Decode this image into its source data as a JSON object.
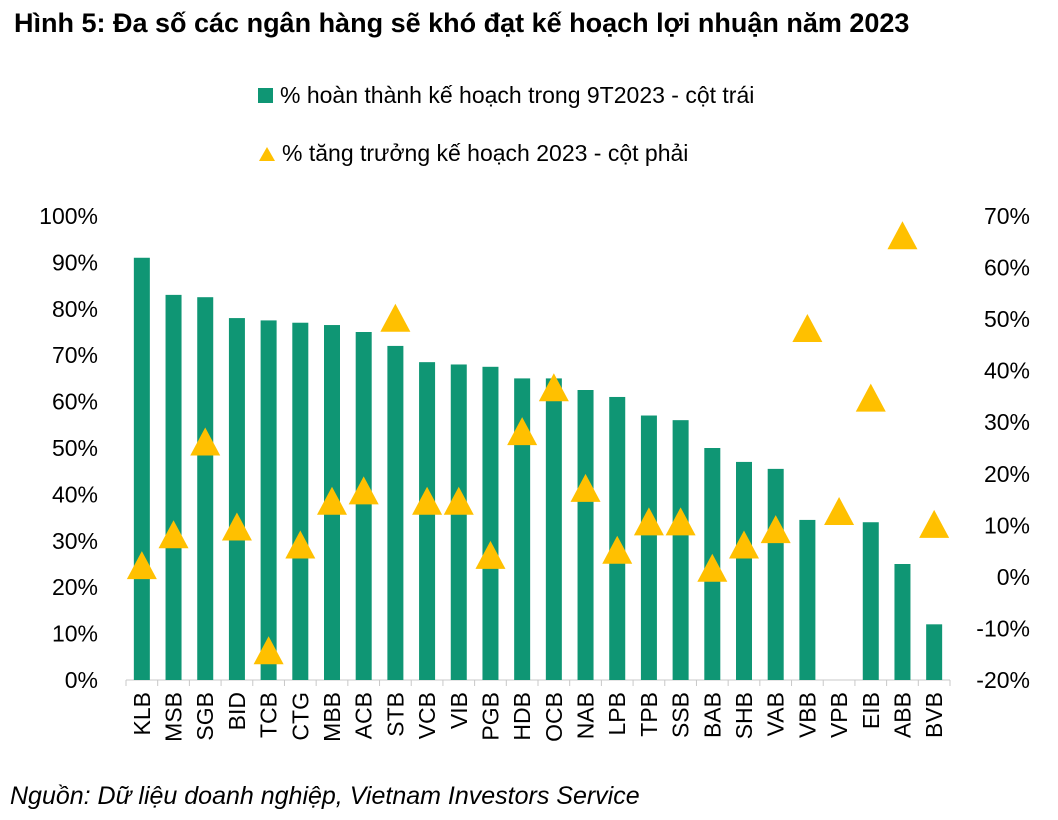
{
  "title": "Hình 5: Đa số các ngân hàng sẽ khó đạt kế hoạch lợi nhuận năm 2023",
  "source": "Nguồn: Dữ liệu doanh nghiệp, Vietnam Investors Service",
  "legend": {
    "series_0": "% hoàn thành kế hoạch trong 9T2023 - cột trái",
    "series_1": "% tăng trưởng kế hoạch 2023 - cột phải"
  },
  "colors": {
    "bar": "#0F9674",
    "marker": "#FFC000"
  },
  "chart_data": {
    "type": "bar",
    "title": "Hình 5: Đa số các ngân hàng sẽ khó đạt kế hoạch lợi nhuận năm 2023",
    "categories": [
      "KLB",
      "MSB",
      "SGB",
      "BID",
      "TCB",
      "CTG",
      "MBB",
      "ACB",
      "STB",
      "VCB",
      "VIB",
      "PGB",
      "HDB",
      "OCB",
      "NAB",
      "LPB",
      "TPB",
      "SSB",
      "BAB",
      "SHB",
      "VAB",
      "VBB",
      "VPB",
      "EIB",
      "ABB",
      "BVB"
    ],
    "series": [
      {
        "name": "% hoàn thành kế hoạch trong 9T2023 - cột trái",
        "type": "bar",
        "axis": "left",
        "values": [
          91,
          83,
          82.5,
          78,
          77.5,
          77,
          76.5,
          75,
          72,
          68.5,
          68,
          67.5,
          65,
          65,
          62.5,
          61,
          57,
          56,
          50,
          47,
          45.5,
          34.5,
          null,
          34,
          25,
          12
        ]
      },
      {
        "name": "% tăng trưởng kế hoạch 2023 - cột phải",
        "type": "scatter",
        "marker": "triangle",
        "axis": "right",
        "values": [
          2,
          8,
          26,
          9.5,
          -14.5,
          6,
          14.5,
          16.5,
          50,
          14.5,
          14.5,
          4,
          28,
          36.5,
          17,
          5,
          10.5,
          10.5,
          1.5,
          6,
          9,
          48,
          12.5,
          34.5,
          66,
          10
        ]
      }
    ],
    "ylim_left": [
      0,
      100
    ],
    "yticks_left": [
      "0%",
      "10%",
      "20%",
      "30%",
      "40%",
      "50%",
      "60%",
      "70%",
      "80%",
      "90%",
      "100%"
    ],
    "ylim_right": [
      -20,
      70
    ],
    "yticks_right": [
      "-20%",
      "-10%",
      "0%",
      "10%",
      "20%",
      "30%",
      "40%",
      "50%",
      "60%",
      "70%"
    ],
    "grid": false,
    "legend_position": "top"
  }
}
